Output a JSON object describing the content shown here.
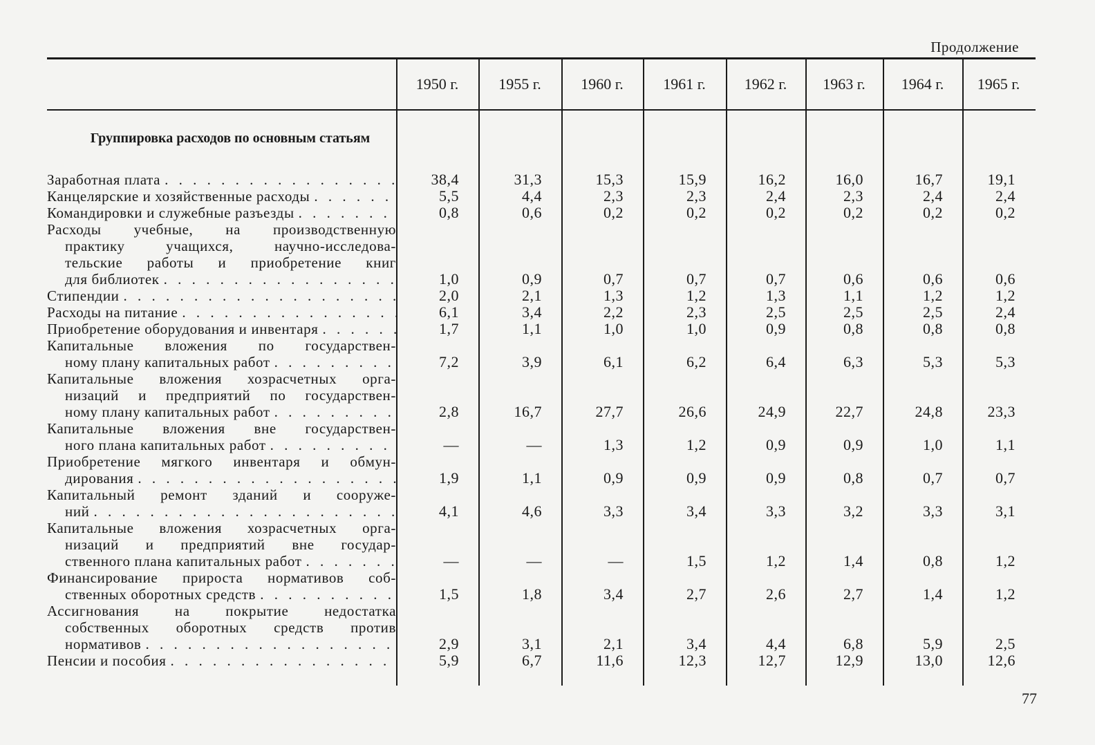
{
  "continuation": "Продолжение",
  "page_number": "77",
  "columns": [
    "1950 г.",
    "1955 г.",
    "1960 г.",
    "1961 г.",
    "1962 г.",
    "1963 г.",
    "1964 г.",
    "1965 г."
  ],
  "section_title": "Группировка расходов по основным статьям",
  "rows": [
    {
      "lines": [
        "Заработная плата"
      ],
      "values": [
        "38,4",
        "31,3",
        "15,3",
        "15,9",
        "16,2",
        "16,0",
        "16,7",
        "19,1"
      ]
    },
    {
      "lines": [
        "Канцелярские и хозяйственные расходы"
      ],
      "values": [
        "5,5",
        "4,4",
        "2,3",
        "2,3",
        "2,4",
        "2,3",
        "2,4",
        "2,4"
      ]
    },
    {
      "lines": [
        "Командировки и служебные разъезды"
      ],
      "values": [
        "0,8",
        "0,6",
        "0,2",
        "0,2",
        "0,2",
        "0,2",
        "0,2",
        "0,2"
      ]
    },
    {
      "lines": [
        "Расходы учебные, на производственную",
        "практику учащихся, научно-исследова-",
        "тельские работы и приобретение книг",
        "для библиотек"
      ],
      "values": [
        "1,0",
        "0,9",
        "0,7",
        "0,7",
        "0,7",
        "0,6",
        "0,6",
        "0,6"
      ]
    },
    {
      "lines": [
        "Стипендии"
      ],
      "values": [
        "2,0",
        "2,1",
        "1,3",
        "1,2",
        "1,3",
        "1,1",
        "1,2",
        "1,2"
      ]
    },
    {
      "lines": [
        "Расходы на питание"
      ],
      "values": [
        "6,1",
        "3,4",
        "2,2",
        "2,3",
        "2,5",
        "2,5",
        "2,5",
        "2,4"
      ]
    },
    {
      "lines": [
        "Приобретение оборудования и инвентаря"
      ],
      "values": [
        "1,7",
        "1,1",
        "1,0",
        "1,0",
        "0,9",
        "0,8",
        "0,8",
        "0,8"
      ]
    },
    {
      "lines": [
        "Капитальные вложения по государствен-",
        "ному плану капитальных работ"
      ],
      "values": [
        "7,2",
        "3,9",
        "6,1",
        "6,2",
        "6,4",
        "6,3",
        "5,3",
        "5,3"
      ]
    },
    {
      "lines": [
        "Капитальные вложения хозрасчетных орга-",
        "низаций и предприятий по государствен-",
        "ному плану капитальных работ"
      ],
      "values": [
        "2,8",
        "16,7",
        "27,7",
        "26,6",
        "24,9",
        "22,7",
        "24,8",
        "23,3"
      ]
    },
    {
      "lines": [
        "Капитальные вложения вне государствен-",
        "ного плана капитальных работ"
      ],
      "values": [
        "—",
        "—",
        "1,3",
        "1,2",
        "0,9",
        "0,9",
        "1,0",
        "1,1"
      ]
    },
    {
      "lines": [
        "Приобретение мягкого инвентаря и обмун-",
        "дирования"
      ],
      "values": [
        "1,9",
        "1,1",
        "0,9",
        "0,9",
        "0,9",
        "0,8",
        "0,7",
        "0,7"
      ]
    },
    {
      "lines": [
        "Капитальный ремонт зданий и сооруже-",
        "ний"
      ],
      "values": [
        "4,1",
        "4,6",
        "3,3",
        "3,4",
        "3,3",
        "3,2",
        "3,3",
        "3,1"
      ]
    },
    {
      "lines": [
        "Капитальные вложения хозрасчетных орга-",
        "низаций и предприятий вне государ-",
        "ственного плана капитальных работ"
      ],
      "values": [
        "—",
        "—",
        "—",
        "1,5",
        "1,2",
        "1,4",
        "0,8",
        "1,2"
      ]
    },
    {
      "lines": [
        "Финансирование прироста нормативов соб-",
        "ственных оборотных средств"
      ],
      "values": [
        "1,5",
        "1,8",
        "3,4",
        "2,7",
        "2,6",
        "2,7",
        "1,4",
        "1,2"
      ]
    },
    {
      "lines": [
        "Ассигнования на покрытие недостатка",
        "собственных оборотных средств против",
        "нормативов"
      ],
      "values": [
        "2,9",
        "3,1",
        "2,1",
        "3,4",
        "4,4",
        "6,8",
        "5,9",
        "2,5"
      ]
    },
    {
      "lines": [
        "Пенсии и пособия"
      ],
      "values": [
        "5,9",
        "6,7",
        "11,6",
        "12,3",
        "12,7",
        "12,9",
        "13,0",
        "12,6"
      ]
    }
  ]
}
